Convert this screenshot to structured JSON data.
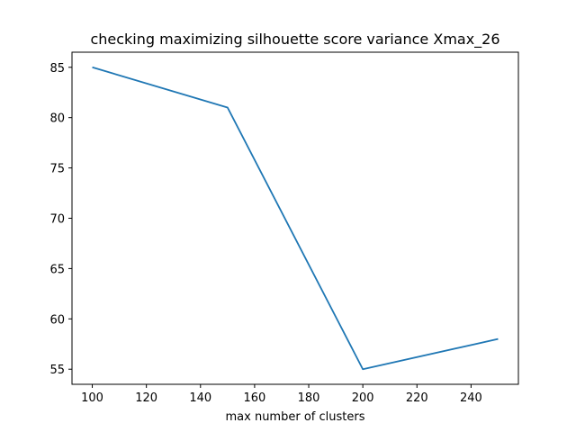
{
  "chart_data": {
    "type": "line",
    "title": "checking maximizing silhouette score variance Xmax_26",
    "xlabel": "max number of clusters",
    "ylabel": "",
    "x": [
      100,
      150,
      200,
      250
    ],
    "series": [
      {
        "values": [
          85,
          81,
          55,
          58
        ],
        "color": "#1f77b4"
      }
    ],
    "xticks": [
      100,
      120,
      140,
      160,
      180,
      200,
      220,
      240
    ],
    "yticks": [
      55,
      60,
      65,
      70,
      75,
      80,
      85
    ],
    "xlim": [
      92.5,
      257.5
    ],
    "ylim": [
      53.5,
      86.5
    ],
    "grid": false,
    "legend": "none"
  }
}
